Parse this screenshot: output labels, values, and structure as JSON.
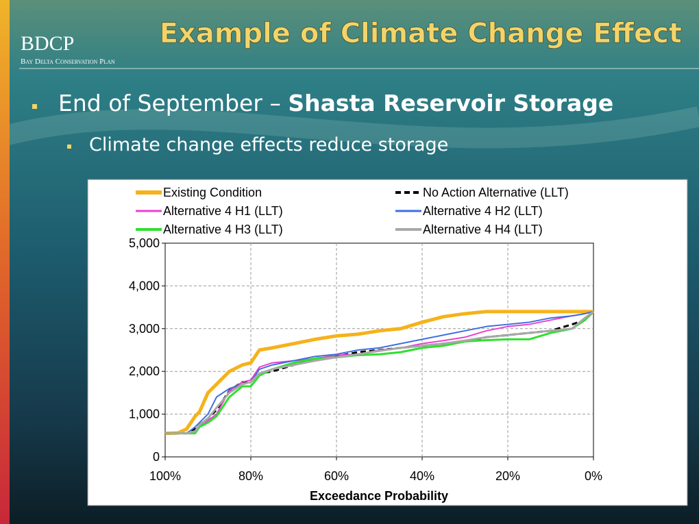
{
  "slide": {
    "logo": "BDCP",
    "logo_subtitle": "Bay Delta Conservation Plan",
    "title": "Example of Climate Change Effect",
    "bullet": {
      "text": "End of September –",
      "emphasis": "Shasta Reservoir Storage"
    },
    "sub_bullet": "Climate change effects reduce storage"
  },
  "chart_data": {
    "type": "line",
    "xlabel": "Exceedance Probability",
    "x": [
      100,
      97,
      95,
      93,
      92,
      90,
      88,
      85,
      82,
      80,
      78,
      75,
      70,
      65,
      60,
      55,
      50,
      45,
      40,
      35,
      30,
      25,
      20,
      15,
      10,
      5,
      2,
      0
    ],
    "series": [
      {
        "name": "Existing Condition",
        "color": "#f5b21a",
        "width": 5,
        "values": [
          550,
          560,
          650,
          950,
          1050,
          1500,
          1700,
          2000,
          2150,
          2200,
          2500,
          2550,
          2650,
          2750,
          2830,
          2870,
          2950,
          3000,
          3150,
          3280,
          3350,
          3400,
          3400,
          3400,
          3400,
          3400,
          3400,
          3400
        ]
      },
      {
        "name": "No Action Alternative (LLT)",
        "color": "#000000",
        "width": 3,
        "dashed": true,
        "values": [
          550,
          550,
          550,
          650,
          750,
          900,
          1100,
          1550,
          1750,
          1750,
          1950,
          2000,
          2150,
          2300,
          2350,
          2450,
          2500,
          2550,
          2600,
          2650,
          2700,
          2800,
          2850,
          2900,
          2950,
          3100,
          3200,
          3400
        ]
      },
      {
        "name": "Alternative 4 H1 (LLT)",
        "color": "#ec3fd0",
        "width": 2,
        "values": [
          550,
          550,
          550,
          600,
          700,
          850,
          1000,
          1550,
          1750,
          1800,
          2100,
          2200,
          2250,
          2300,
          2380,
          2400,
          2500,
          2550,
          2650,
          2720,
          2800,
          2950,
          3050,
          3100,
          3200,
          3300,
          3350,
          3400
        ]
      },
      {
        "name": "Alternative 4 H2 (LLT)",
        "color": "#3d6fe0",
        "width": 2,
        "values": [
          550,
          550,
          550,
          700,
          800,
          1000,
          1400,
          1600,
          1700,
          1750,
          2050,
          2150,
          2250,
          2350,
          2400,
          2500,
          2550,
          2650,
          2750,
          2850,
          2950,
          3050,
          3100,
          3150,
          3250,
          3300,
          3350,
          3400
        ]
      },
      {
        "name": "Alternative 4 H3 (LLT)",
        "color": "#2ee02e",
        "width": 3,
        "values": [
          550,
          550,
          550,
          550,
          700,
          800,
          950,
          1400,
          1650,
          1650,
          1900,
          2050,
          2200,
          2300,
          2330,
          2380,
          2400,
          2450,
          2550,
          2600,
          2700,
          2730,
          2750,
          2750,
          2900,
          3000,
          3200,
          3400
        ]
      },
      {
        "name": "Alternative 4 H4 (LLT)",
        "color": "#a8a8a8",
        "width": 3,
        "values": [
          550,
          550,
          550,
          600,
          750,
          900,
          1150,
          1500,
          1700,
          1750,
          1950,
          2050,
          2150,
          2250,
          2330,
          2400,
          2480,
          2550,
          2600,
          2650,
          2720,
          2800,
          2850,
          2900,
          2950,
          3000,
          3250,
          3400
        ]
      }
    ],
    "xlim": [
      100,
      0
    ],
    "xticks": [
      {
        "value": 100,
        "label": "100%"
      },
      {
        "value": 80,
        "label": "80%"
      },
      {
        "value": 60,
        "label": "60%"
      },
      {
        "value": 40,
        "label": "40%"
      },
      {
        "value": 20,
        "label": "20%"
      },
      {
        "value": 0,
        "label": "0%"
      }
    ],
    "ylim": [
      0,
      5000
    ],
    "yticks": [
      0,
      {
        "value": 1000,
        "label": "1,000"
      },
      {
        "value": 2000,
        "label": "2,000"
      },
      {
        "value": 3000,
        "label": "3,000"
      },
      {
        "value": 4000,
        "label": "4,000"
      },
      {
        "value": 5000,
        "label": "5,000"
      }
    ],
    "grid": true,
    "legend": "top"
  }
}
